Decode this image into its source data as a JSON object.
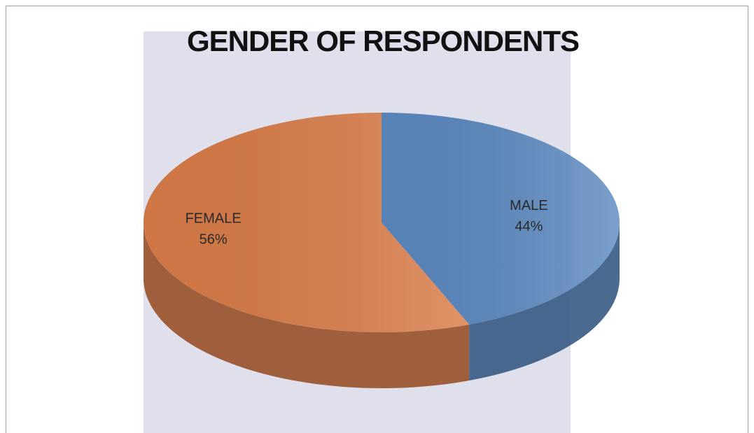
{
  "chart_data": {
    "type": "pie",
    "title": "GENDER OF RESPONDENTS",
    "categories": [
      "MALE",
      "FEMALE"
    ],
    "values": [
      44,
      56
    ],
    "value_labels": [
      "44%",
      "56%"
    ],
    "colors": [
      "#4f81bd",
      "#d9733a"
    ]
  }
}
